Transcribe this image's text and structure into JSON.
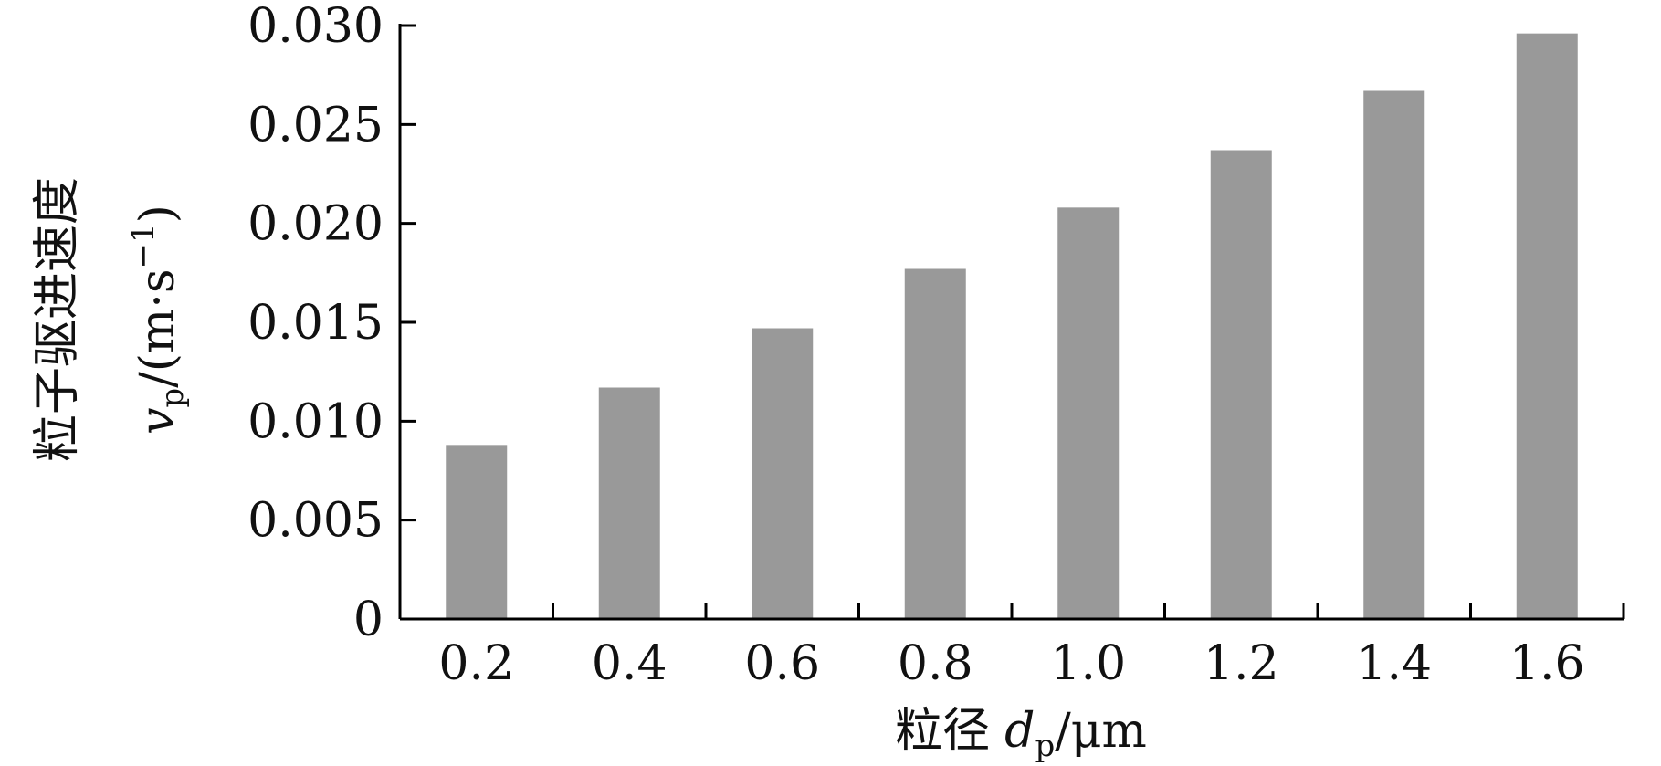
{
  "chart_data": {
    "type": "bar",
    "categories": [
      "0.2",
      "0.4",
      "0.6",
      "0.8",
      "1.0",
      "1.2",
      "1.4",
      "1.6"
    ],
    "values": [
      0.0088,
      0.0117,
      0.0147,
      0.0177,
      0.0208,
      0.0237,
      0.0267,
      0.0296
    ],
    "yticks": [
      "0",
      "0.005",
      "0.010",
      "0.015",
      "0.020",
      "0.025",
      "0.030"
    ],
    "ylim": [
      0,
      0.03
    ],
    "xlabel_text": "粒径",
    "xlabel_var": "d",
    "xlabel_sub": "p",
    "xlabel_unit": "/μm",
    "ylabel_line1": "粒子驱进速度",
    "ylabel_var": "v",
    "ylabel_sub": "p",
    "ylabel_unit": "/(m·s",
    "ylabel_exp": "−1",
    "ylabel_close": ")",
    "bar_color": "#999999",
    "axis_color": "#000000"
  }
}
